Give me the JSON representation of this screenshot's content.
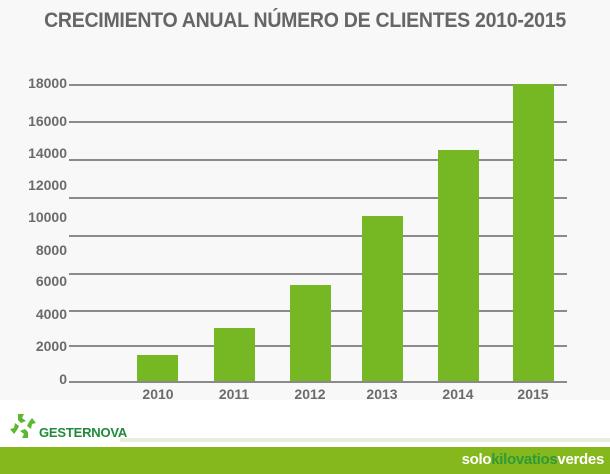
{
  "title": "CRECIMIENTO ANUAL NÚMERO DE CLIENTES 2010-2015",
  "y_axis": {
    "ticks": [
      "18000",
      "16000",
      "14000",
      "12000",
      "10000",
      "8000",
      "6000",
      "4000",
      "2000",
      "0"
    ]
  },
  "x_axis": {
    "ticks": [
      "2010",
      "2011",
      "2012",
      "2013",
      "2014",
      "2015"
    ]
  },
  "brand": {
    "name": "GESTERNOVA",
    "slogan_pre": "solo",
    "slogan_mid": "kilovatios",
    "slogan_post": "verdes"
  },
  "colors": {
    "bar": "#76b824",
    "footer": "#84b81c",
    "brand_green": "#1e8a3a",
    "text": "#666666"
  },
  "chart_data": {
    "type": "bar",
    "title": "CRECIMIENTO ANUAL NÚMERO DE CLIENTES 2010-2015",
    "categories": [
      "2010",
      "2011",
      "2012",
      "2013",
      "2014",
      "2015"
    ],
    "values": [
      1600,
      3200,
      5800,
      10000,
      14000,
      18000
    ],
    "xlabel": "",
    "ylabel": "",
    "ylim": [
      0,
      18000
    ],
    "yticks": [
      0,
      2000,
      4000,
      6000,
      8000,
      10000,
      12000,
      14000,
      16000,
      18000
    ],
    "grid": true,
    "legend": null
  }
}
